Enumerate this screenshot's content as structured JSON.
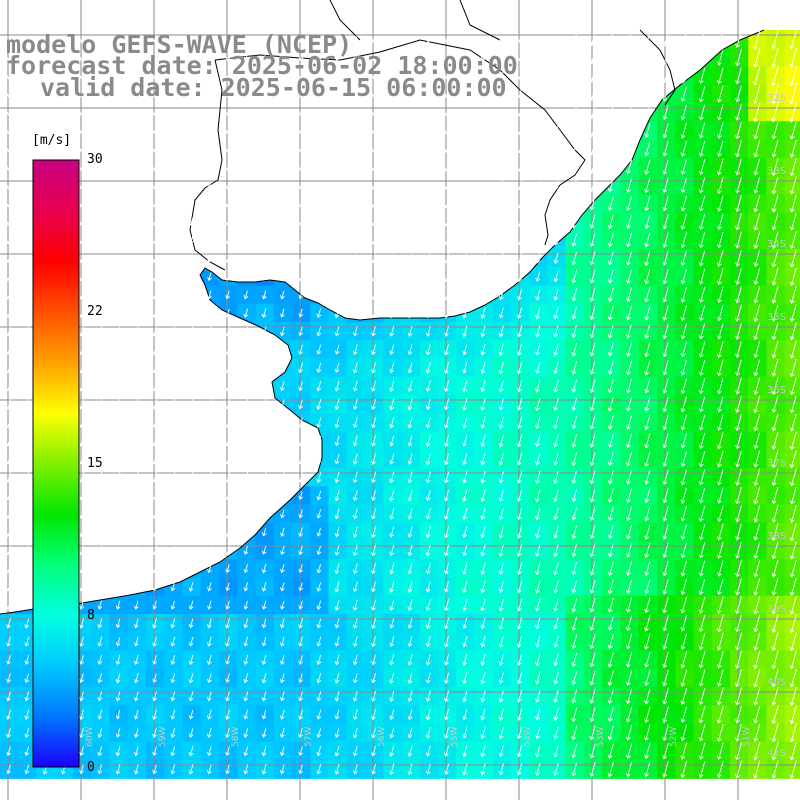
{
  "title": {
    "line1": "modelo GEFS-WAVE (NCEP)",
    "line2": "forecast date: 2025-06-02 18:00:00",
    "line3": "valid date: 2025-06-15 06:00:00"
  },
  "colorbar": {
    "unit": "[m/s]",
    "ticks": [
      "30",
      "22",
      "15",
      "8",
      "0"
    ],
    "min": 0,
    "max": 30,
    "colors": [
      "#1a00ff",
      "#0078ff",
      "#00c8ff",
      "#00ffe0",
      "#00ff7a",
      "#00e600",
      "#80f000",
      "#ffff00",
      "#ffa000",
      "#ff5000",
      "#ff0000",
      "#e80050",
      "#c80080"
    ]
  },
  "grid": {
    "lat_labels": [
      "32S",
      "33S",
      "34S",
      "35S",
      "36S",
      "37S",
      "38S",
      "39S",
      "40S",
      "41S"
    ],
    "lon_labels": [
      "60W",
      "59W",
      "58W",
      "57W",
      "56W",
      "55W",
      "54W",
      "53W",
      "52W",
      "51W"
    ]
  },
  "chart_data": {
    "type": "heatmap",
    "variable": "wind speed with direction arrows",
    "unit": "m/s",
    "color_range": [
      0,
      30
    ],
    "colorbar_ticks": [
      0,
      8,
      15,
      22,
      30
    ],
    "approx_values": {
      "rio_de_la_plata_estuary": 3,
      "southwest_coastal_shelf": 6,
      "central_offshore": 7,
      "eastern_offshore": 11,
      "far_northeast_corner": 14
    },
    "arrow_direction": "toward south-southwest"
  }
}
